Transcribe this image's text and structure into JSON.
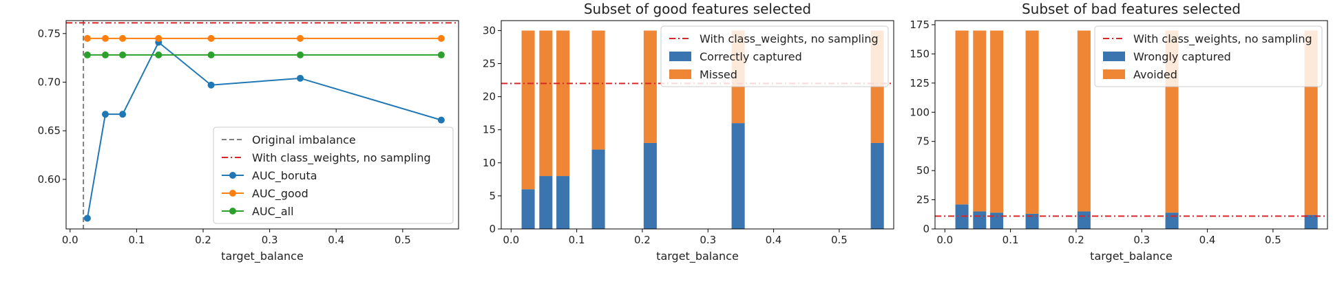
{
  "chart_data": [
    {
      "type": "line",
      "title": "",
      "xlabel": "target_balance",
      "ylabel": "",
      "xlim": [
        -0.006,
        0.584
      ],
      "ylim": [
        0.549,
        0.7633
      ],
      "xticks": [
        0.0,
        0.1,
        0.2,
        0.3,
        0.4,
        0.5
      ],
      "xtick_labels": [
        "0.0",
        "0.1",
        "0.2",
        "0.3",
        "0.4",
        "0.5"
      ],
      "yticks": [
        0.6,
        0.65,
        0.7,
        0.75
      ],
      "ytick_labels": [
        "0.60",
        "0.65",
        "0.70",
        "0.75"
      ],
      "grid": false,
      "legend_position": "lower-right",
      "vline": {
        "name": "Original imbalance",
        "x": 0.02,
        "color": "#7f7f7f"
      },
      "hline": {
        "name": "With class_weights, no sampling",
        "y": 0.761,
        "color": "#d62728"
      },
      "x": [
        0.026,
        0.053,
        0.079,
        0.133,
        0.212,
        0.346,
        0.558
      ],
      "series": [
        {
          "name": "AUC_boruta",
          "color": "#1f77b4",
          "values": [
            0.56,
            0.667,
            0.667,
            0.741,
            0.697,
            0.704,
            0.661
          ]
        },
        {
          "name": "AUC_good",
          "color": "#ff7f0e",
          "values": [
            0.745,
            0.745,
            0.745,
            0.745,
            0.745,
            0.745,
            0.745
          ]
        },
        {
          "name": "AUC_all",
          "color": "#2ca02c",
          "values": [
            0.728,
            0.728,
            0.728,
            0.728,
            0.728,
            0.728,
            0.728
          ]
        }
      ],
      "legend": [
        "Original imbalance",
        "With class_weights, no sampling",
        "AUC_boruta",
        "AUC_good",
        "AUC_all"
      ]
    },
    {
      "type": "bar",
      "stacked": true,
      "title": "Subset of good features selected",
      "xlabel": "target_balance",
      "ylabel": "",
      "xlim": [
        -0.015,
        0.583
      ],
      "ylim": [
        0,
        31.5
      ],
      "xticks": [
        0.0,
        0.1,
        0.2,
        0.3,
        0.4,
        0.5
      ],
      "xtick_labels": [
        "0.0",
        "0.1",
        "0.2",
        "0.3",
        "0.4",
        "0.5"
      ],
      "yticks": [
        0,
        5,
        10,
        15,
        20,
        25,
        30
      ],
      "ytick_labels": [
        "0",
        "5",
        "10",
        "15",
        "20",
        "25",
        "30"
      ],
      "grid": false,
      "legend_position": "upper-right",
      "bar_width": 0.02,
      "hline": {
        "name": "With class_weights, no sampling",
        "y": 22,
        "color": "#d62728"
      },
      "x": [
        0.026,
        0.053,
        0.079,
        0.133,
        0.212,
        0.346,
        0.558
      ],
      "series": [
        {
          "name": "Correctly captured",
          "color": "#3b75af",
          "values": [
            6,
            8,
            8,
            12,
            13,
            16,
            13
          ]
        },
        {
          "name": "Missed",
          "color": "#ef8636",
          "values": [
            24,
            22,
            22,
            18,
            17,
            14,
            17
          ]
        }
      ],
      "legend": [
        "With class_weights, no sampling",
        "Correctly captured",
        "Missed"
      ]
    },
    {
      "type": "bar",
      "stacked": true,
      "title": "Subset of bad features selected",
      "xlabel": "target_balance",
      "ylabel": "",
      "xlim": [
        -0.015,
        0.583
      ],
      "ylim": [
        0,
        178.5
      ],
      "xticks": [
        0.0,
        0.1,
        0.2,
        0.3,
        0.4,
        0.5
      ],
      "xtick_labels": [
        "0.0",
        "0.1",
        "0.2",
        "0.3",
        "0.4",
        "0.5"
      ],
      "yticks": [
        0,
        25,
        50,
        75,
        100,
        125,
        150,
        175
      ],
      "ytick_labels": [
        "0",
        "25",
        "50",
        "75",
        "100",
        "125",
        "150",
        "175"
      ],
      "grid": false,
      "legend_position": "upper-right",
      "bar_width": 0.02,
      "hline": {
        "name": "With class_weights, no sampling",
        "y": 11,
        "color": "#d62728"
      },
      "x": [
        0.026,
        0.053,
        0.079,
        0.133,
        0.212,
        0.346,
        0.558
      ],
      "series": [
        {
          "name": "Wrongly captured",
          "color": "#3b75af",
          "values": [
            21,
            15,
            14,
            13,
            15,
            14,
            12
          ]
        },
        {
          "name": "Avoided",
          "color": "#ef8636",
          "values": [
            149,
            155,
            156,
            157,
            155,
            156,
            158
          ]
        }
      ],
      "legend": [
        "With class_weights, no sampling",
        "Wrongly captured",
        "Avoided"
      ]
    }
  ]
}
